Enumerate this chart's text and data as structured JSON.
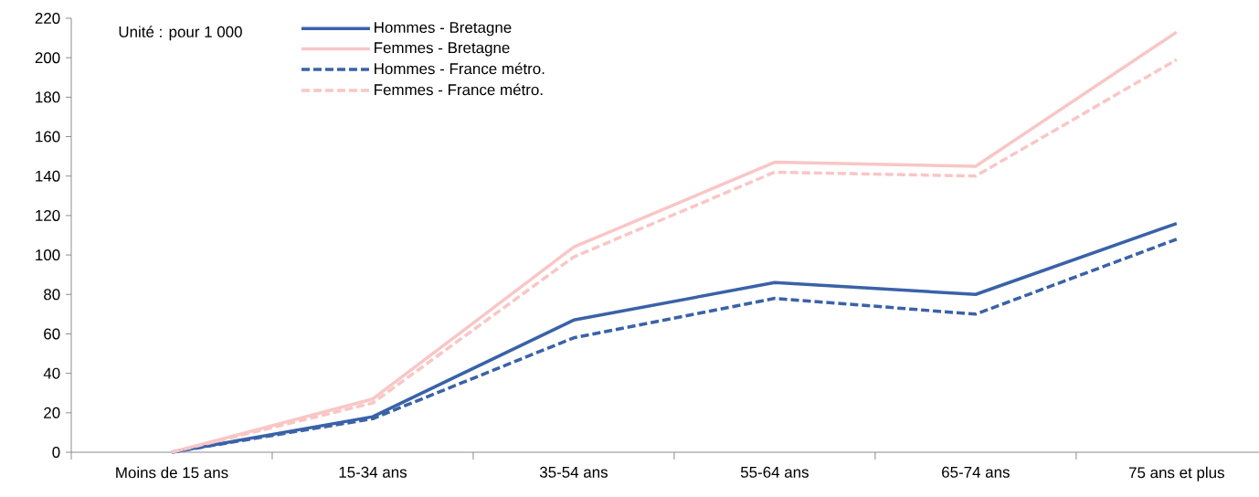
{
  "chart_data": {
    "type": "line",
    "annotations": [
      "Unité : pour 1 000"
    ],
    "categories": [
      "Moins de 15 ans",
      "15-34 ans",
      "35-54 ans",
      "55-64 ans",
      "65-74 ans",
      "75 ans et plus"
    ],
    "series": [
      {
        "name": "Hommes - Bretagne",
        "color": "#3a62a7",
        "line_style": "solid",
        "values": [
          0,
          18,
          67,
          86,
          80,
          116
        ]
      },
      {
        "name": "Femmes - Bretagne",
        "color": "#f9c6c6",
        "line_style": "solid",
        "values": [
          0,
          27,
          104,
          147,
          145,
          213
        ]
      },
      {
        "name": "Hommes - France métro.",
        "color": "#3a62a7",
        "line_style": "dashed",
        "values": [
          0,
          17,
          58,
          78,
          70,
          108
        ]
      },
      {
        "name": "Femmes - France métro.",
        "color": "#f9c6c6",
        "line_style": "dashed",
        "values": [
          0,
          25,
          99,
          142,
          140,
          199
        ]
      }
    ],
    "ylim": [
      0,
      220
    ],
    "yticks": [
      0,
      20,
      40,
      60,
      80,
      100,
      120,
      140,
      160,
      180,
      200,
      220
    ],
    "grid": false,
    "legend": "top left"
  }
}
